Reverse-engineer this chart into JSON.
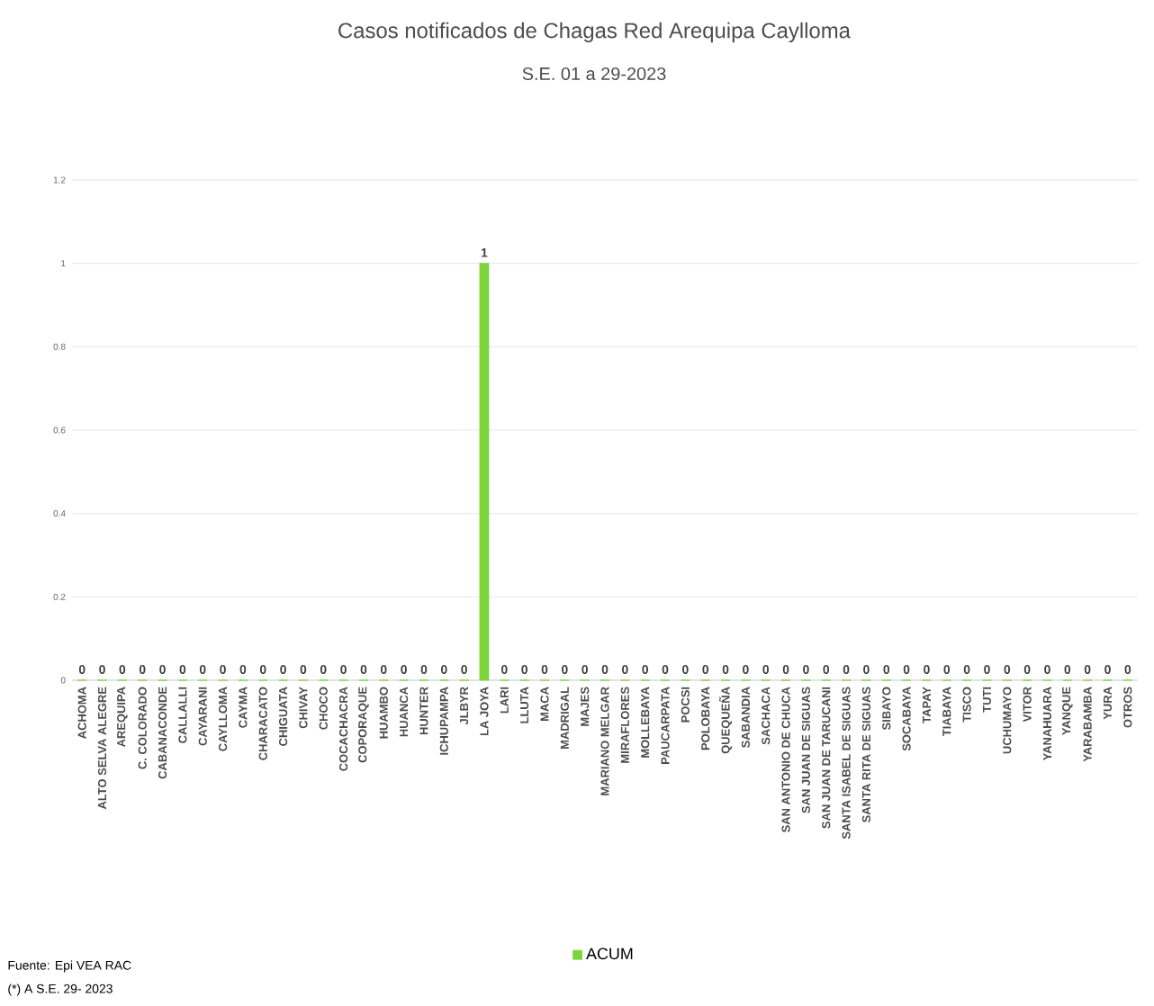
{
  "chart_data": {
    "type": "bar",
    "title": "Casos notificados de Chagas Red Arequipa Caylloma",
    "subtitle": "S.E. 01 a 29-2023",
    "categories": [
      "ACHOMA",
      "ALTO SELVA ALEGRE",
      "AREQUIPA",
      "C. COLORADO",
      "CABANACONDE",
      "CALLALLI",
      "CAYARANI",
      "CAYLLOMA",
      "CAYMA",
      "CHARACATO",
      "CHIGUATA",
      "CHIVAY",
      "CHOCO",
      "COCACHACRA",
      "COPORAQUE",
      "HUAMBO",
      "HUANCA",
      "HUNTER",
      "ICHUPAMPA",
      "JLBYR",
      "LA JOYA",
      "LARI",
      "LLUTA",
      "MACA",
      "MADRIGAL",
      "MAJES",
      "MARIANO MELGAR",
      "MIRAFLORES",
      "MOLLEBAYA",
      "PAUCARPATA",
      "POCSI",
      "POLOBAYA",
      "QUEQUEÑA",
      "SABANDIA",
      "SACHACA",
      "SAN ANTONIO DE CHUCA",
      "SAN JUAN DE SIGUAS",
      "SAN JUAN DE TARUCANI",
      "SANTA ISABEL DE SIGUAS",
      "SANTA RITA DE SIGUAS",
      "SIBAYO",
      "SOCABAYA",
      "TAPAY",
      "TIABAYA",
      "TISCO",
      "TUTI",
      "UCHUMAYO",
      "VITOR",
      "YANAHUARA",
      "YANQUE",
      "YARABAMBA",
      "YURA",
      "OTROS"
    ],
    "series": [
      {
        "name": "ACUM",
        "color": "#7cd33a",
        "values": [
          0,
          0,
          0,
          0,
          0,
          0,
          0,
          0,
          0,
          0,
          0,
          0,
          0,
          0,
          0,
          0,
          0,
          0,
          0,
          0,
          1,
          0,
          0,
          0,
          0,
          0,
          0,
          0,
          0,
          0,
          0,
          0,
          0,
          0,
          0,
          0,
          0,
          0,
          0,
          0,
          0,
          0,
          0,
          0,
          0,
          0,
          0,
          0,
          0,
          0,
          0,
          0,
          0
        ]
      }
    ],
    "ylim": [
      0,
      1.2
    ],
    "yticks": [
      0,
      0.2,
      0.4,
      0.6,
      0.8,
      1,
      1.2
    ],
    "grid": "y",
    "legend": "bottom",
    "data_labels": true,
    "annotations": [
      "Fuente: Epi VEA RAC",
      "(*) A S.E.  29- 2023"
    ]
  }
}
